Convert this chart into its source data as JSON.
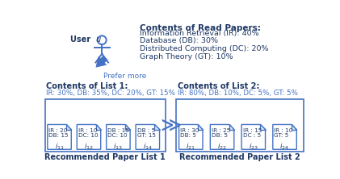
{
  "read_papers_title": "Contents of Read Papers:",
  "read_papers_items": [
    "Information Retrieval (IR): 40%",
    "Database (DB): 30%",
    "Distributed Computing (DC): 20%",
    "Graph Theory (GT): 10%"
  ],
  "list1_title": "Contents of List 1:",
  "list1_subtitle": "IR: 30%, DB: 35%, DC: 20%, GT: 15%",
  "list1_label": "Recommended Paper List 1",
  "list2_title": "Contents of List 2:",
  "list2_subtitle": "IR: 80%, DB: 10%, DC: 5%, GT: 5%",
  "list2_label": "Recommended Paper List 2",
  "papers_list1": [
    {
      "line1": "IR : 20",
      "line2": "DB: 15",
      "id": "11"
    },
    {
      "line1": "IR : 10",
      "line2": "DC: 10",
      "id": "12"
    },
    {
      "line1": "DB : 15",
      "line2": "DC: 10",
      "id": "13"
    },
    {
      "line1": "DB : 5",
      "line2": "GT: 15",
      "id": "14"
    }
  ],
  "papers_list2": [
    {
      "line1": "IR : 30",
      "line2": "DB: 5",
      "id": "21"
    },
    {
      "line1": "IR : 25",
      "line2": "DB: 5",
      "id": "22"
    },
    {
      "line1": "IR : 15",
      "line2": "DC : 5",
      "id": "23"
    },
    {
      "line1": "IR : 10",
      "line2": "GT: 5",
      "id": "24"
    }
  ],
  "user_label": "User ",
  "prefer_more_label": "Prefer more",
  "color_blue": "#4472C4",
  "color_dark": "#1F3864",
  "color_black": "#000000",
  "bg_color": "#FFFFFF"
}
